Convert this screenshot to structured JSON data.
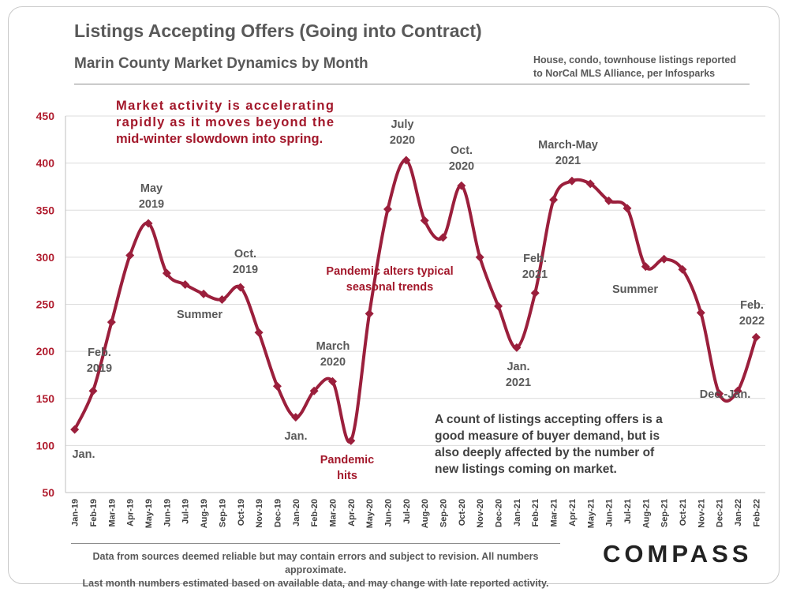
{
  "header": {
    "title": "Listings Accepting Offers (Going into Contract)",
    "subtitle": "Marin County Market Dynamics by Month",
    "source_note_line1": "House, condo, townhouse listings reported",
    "source_note_line2": "to NorCal MLS Alliance, per Infosparks"
  },
  "footer": {
    "line1": "Data from sources deemed reliable but may contain errors and subject to revision. All numbers approximate.",
    "line2": "Last month numbers estimated based on available data, and may change with late reported activity.",
    "logo": "COMPASS"
  },
  "colors": {
    "series": "#9b1f3c",
    "accent_text": "#a3182b",
    "tick_text": "#b01c2e",
    "body_text": "#595959"
  },
  "chart_data": {
    "type": "line",
    "title": "Listings Accepting Offers (Going into Contract)",
    "xlabel": "",
    "ylabel": "",
    "ylim": [
      50,
      450
    ],
    "yticks": [
      50,
      100,
      150,
      200,
      250,
      300,
      350,
      400,
      450
    ],
    "grid": "horizontal",
    "categories": [
      "Jan-19",
      "Feb-19",
      "Mar-19",
      "Apr-19",
      "May-19",
      "Jun-19",
      "Jul-19",
      "Aug-19",
      "Sep-19",
      "Oct-19",
      "Nov-19",
      "Dec-19",
      "Jan-20",
      "Feb-20",
      "Mar-20",
      "Apr-20",
      "May-20",
      "Jun-20",
      "Jul-20",
      "Aug-20",
      "Sep-20",
      "Oct-20",
      "Nov-20",
      "Dec-20",
      "Jan-21",
      "Feb-21",
      "Mar-21",
      "Apr-21",
      "May-21",
      "Jun-21",
      "Jul-21",
      "Aug-21",
      "Sep-21",
      "Oct-21",
      "Nov-21",
      "Dec-21",
      "Jan-22",
      "Feb-22"
    ],
    "series": [
      {
        "name": "Listings Accepting Offers",
        "values": [
          117,
          158,
          231,
          302,
          336,
          283,
          271,
          261,
          255,
          268,
          220,
          163,
          130,
          158,
          168,
          105,
          240,
          351,
          403,
          339,
          321,
          376,
          300,
          248,
          204,
          262,
          361,
          381,
          378,
          360,
          352,
          290,
          298,
          287,
          241,
          155,
          158,
          215
        ]
      }
    ],
    "annotations": {
      "jan_2019": "Jan.",
      "feb_2019": [
        "Feb.",
        "2019"
      ],
      "may_2019": [
        "May",
        "2019"
      ],
      "summer_2019": "Summer",
      "oct_2019": [
        "Oct.",
        "2019"
      ],
      "jan_2020": "Jan.",
      "march_2020": [
        "March",
        "2020"
      ],
      "pandemic_hits": [
        "Pandemic",
        "hits"
      ],
      "pandemic_alters": [
        "Pandemic alters typical",
        "seasonal trends"
      ],
      "july_2020": [
        "July",
        "2020"
      ],
      "oct_2020": [
        "Oct.",
        "2020"
      ],
      "feb_2021": [
        "Feb.",
        "2021"
      ],
      "jan_2021": [
        "Jan.",
        "2021"
      ],
      "march_may_2021": [
        "March-May",
        "2021"
      ],
      "summer_2021": "Summer",
      "dec_jan": "Dec.-Jan.",
      "feb_2022": [
        "Feb.",
        "2022"
      ],
      "market_activity": [
        "Market activity is accelerating",
        "rapidly as it moves beyond the",
        "mid-winter slowdown into spring."
      ],
      "buyer_demand": [
        "A count of listings accepting offers is a",
        "good measure of buyer demand, but is",
        "also deeply affected by the number of",
        "new listings coming on market."
      ]
    }
  }
}
